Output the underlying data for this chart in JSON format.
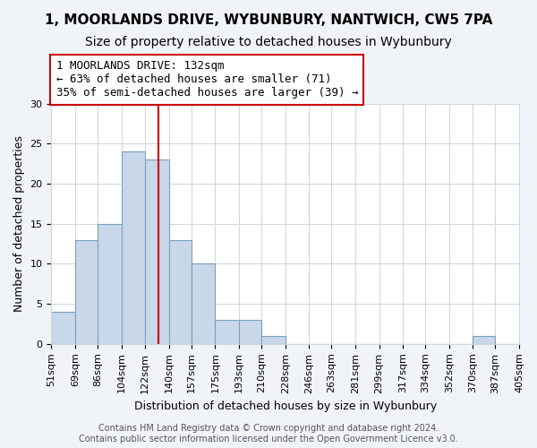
{
  "title": "1, MOORLANDS DRIVE, WYBUNBURY, NANTWICH, CW5 7PA",
  "subtitle": "Size of property relative to detached houses in Wybunbury",
  "xlabel": "Distribution of detached houses by size in Wybunbury",
  "ylabel": "Number of detached properties",
  "bar_color": "#c8d8e8",
  "bar_edgecolor": "#7aa0c0",
  "bin_edges": [
    51,
    69,
    86,
    104,
    122,
    140,
    157,
    175,
    193,
    210,
    228,
    246,
    263,
    281,
    299,
    317,
    334,
    352,
    370,
    387,
    405
  ],
  "bin_labels": [
    "51sqm",
    "69sqm",
    "86sqm",
    "104sqm",
    "122sqm",
    "140sqm",
    "157sqm",
    "175sqm",
    "193sqm",
    "210sqm",
    "228sqm",
    "246sqm",
    "263sqm",
    "281sqm",
    "299sqm",
    "317sqm",
    "334sqm",
    "352sqm",
    "370sqm",
    "387sqm",
    "405sqm"
  ],
  "counts": [
    4,
    13,
    15,
    24,
    23,
    13,
    10,
    3,
    3,
    1,
    0,
    0,
    0,
    0,
    0,
    0,
    0,
    0,
    1,
    0
  ],
  "property_size": 132,
  "property_line_color": "#cc0000",
  "annotation_text_line1": "1 MOORLANDS DRIVE: 132sqm",
  "annotation_text_line2": "← 63% of detached houses are smaller (71)",
  "annotation_text_line3": "35% of semi-detached houses are larger (39) →",
  "annotation_box_color": "#ffffff",
  "annotation_box_edgecolor": "#cc0000",
  "ylim": [
    0,
    30
  ],
  "yticks": [
    0,
    5,
    10,
    15,
    20,
    25,
    30
  ],
  "footer_line1": "Contains HM Land Registry data © Crown copyright and database right 2024.",
  "footer_line2": "Contains public sector information licensed under the Open Government Licence v3.0.",
  "background_color": "#f0f4f8",
  "plot_background_color": "#ffffff",
  "grid_color": "#d0d8e0",
  "title_fontsize": 11,
  "subtitle_fontsize": 10,
  "axis_label_fontsize": 9,
  "tick_fontsize": 8,
  "annotation_fontsize": 9,
  "footer_fontsize": 7
}
